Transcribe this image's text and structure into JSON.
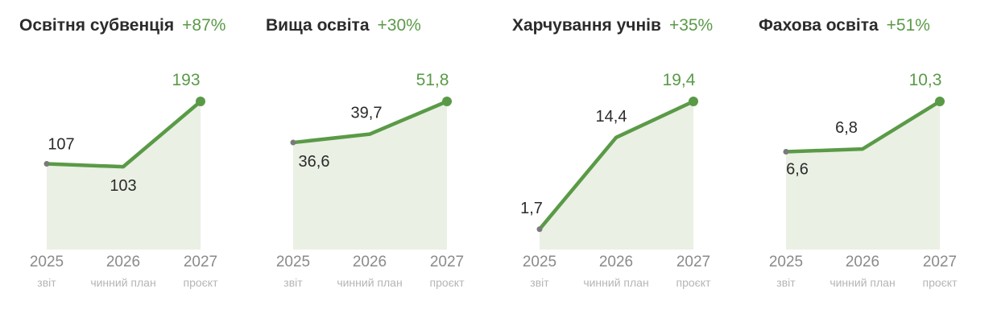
{
  "chart_data": [
    {
      "type": "area",
      "title": "Освітня субвенція",
      "change": "+87%",
      "categories": [
        "2025",
        "2026",
        "2027"
      ],
      "category_notes": [
        "звіт",
        "чинний план",
        "проєкт"
      ],
      "values": [
        107,
        103,
        193
      ],
      "value_labels": [
        "107",
        "103",
        "193"
      ]
    },
    {
      "type": "area",
      "title": "Вища освіта",
      "change": "+30%",
      "categories": [
        "2025",
        "2026",
        "2027"
      ],
      "category_notes": [
        "звіт",
        "чинний план",
        "проєкт"
      ],
      "values": [
        36.6,
        39.7,
        51.8
      ],
      "value_labels": [
        "36,6",
        "39,7",
        "51,8"
      ]
    },
    {
      "type": "area",
      "title": "Харчування учнів",
      "change": "+35%",
      "categories": [
        "2025",
        "2026",
        "2027"
      ],
      "category_notes": [
        "звіт",
        "чинний план",
        "проєкт"
      ],
      "values": [
        1.7,
        14.4,
        19.4
      ],
      "value_labels": [
        "1,7",
        "14,4",
        "19,4"
      ]
    },
    {
      "type": "area",
      "title": "Фахова освіта",
      "change": "+51%",
      "categories": [
        "2025",
        "2026",
        "2027"
      ],
      "category_notes": [
        "звіт",
        "чинний план",
        "проєкт"
      ],
      "values": [
        6.6,
        6.8,
        10.3
      ],
      "value_labels": [
        "6,6",
        "6,8",
        "10,3"
      ]
    }
  ]
}
